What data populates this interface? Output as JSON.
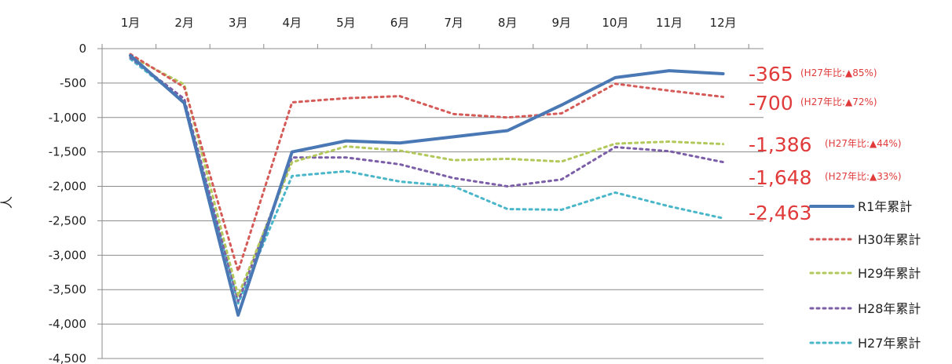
{
  "chart_data": {
    "type": "line",
    "categories": [
      "1月",
      "2月",
      "3月",
      "4月",
      "5月",
      "6月",
      "7月",
      "8月",
      "9月",
      "10月",
      "11月",
      "12月"
    ],
    "ylabel": "人",
    "ylim": [
      -4500,
      0
    ],
    "yticks": [
      0,
      -500,
      -1000,
      -1500,
      -2000,
      -2500,
      -3000,
      -3500,
      -4000,
      -4500
    ],
    "ytick_labels": [
      "0",
      "-500",
      "-1,000",
      "-1,500",
      "-2,000",
      "-2,500",
      "-3,000",
      "-3,500",
      "-4,000",
      "-4,500"
    ],
    "grid": true,
    "legend_position": "right",
    "series": [
      {
        "name": "R1年累計",
        "color": "#4a78b5",
        "style": "solid",
        "values": [
          -100,
          -790,
          -3870,
          -1500,
          -1340,
          -1370,
          -1280,
          -1190,
          -820,
          -420,
          -320,
          -365
        ]
      },
      {
        "name": "H30年累計",
        "color": "#d45b58",
        "style": "dotted",
        "values": [
          -80,
          -560,
          -3230,
          -780,
          -720,
          -690,
          -950,
          -1000,
          -940,
          -510,
          -610,
          -700
        ]
      },
      {
        "name": "H29年累計",
        "color": "#b2c85a",
        "style": "dotted",
        "values": [
          -110,
          -520,
          -3590,
          -1650,
          -1420,
          -1480,
          -1620,
          -1600,
          -1640,
          -1380,
          -1350,
          -1386
        ]
      },
      {
        "name": "H28年累計",
        "color": "#7b5ea7",
        "style": "dotted",
        "values": [
          -130,
          -730,
          -3670,
          -1580,
          -1580,
          -1680,
          -1880,
          -2000,
          -1900,
          -1430,
          -1490,
          -1648
        ]
      },
      {
        "name": "H27年累計",
        "color": "#4ab6c9",
        "style": "dotted",
        "values": [
          -150,
          -770,
          -3700,
          -1850,
          -1780,
          -1930,
          -2000,
          -2330,
          -2340,
          -2090,
          -2290,
          -2463
        ]
      }
    ],
    "end_labels": [
      {
        "value": "-365",
        "note": "(H27年比:▲85%)"
      },
      {
        "value": "-700",
        "note": "(H27年比:▲72%)"
      },
      {
        "value": "-1,386",
        "note": "(H27年比:▲44%)"
      },
      {
        "value": "-1,648",
        "note": "(H27年比:▲33%)"
      },
      {
        "value": "-2,463",
        "note": ""
      }
    ]
  }
}
